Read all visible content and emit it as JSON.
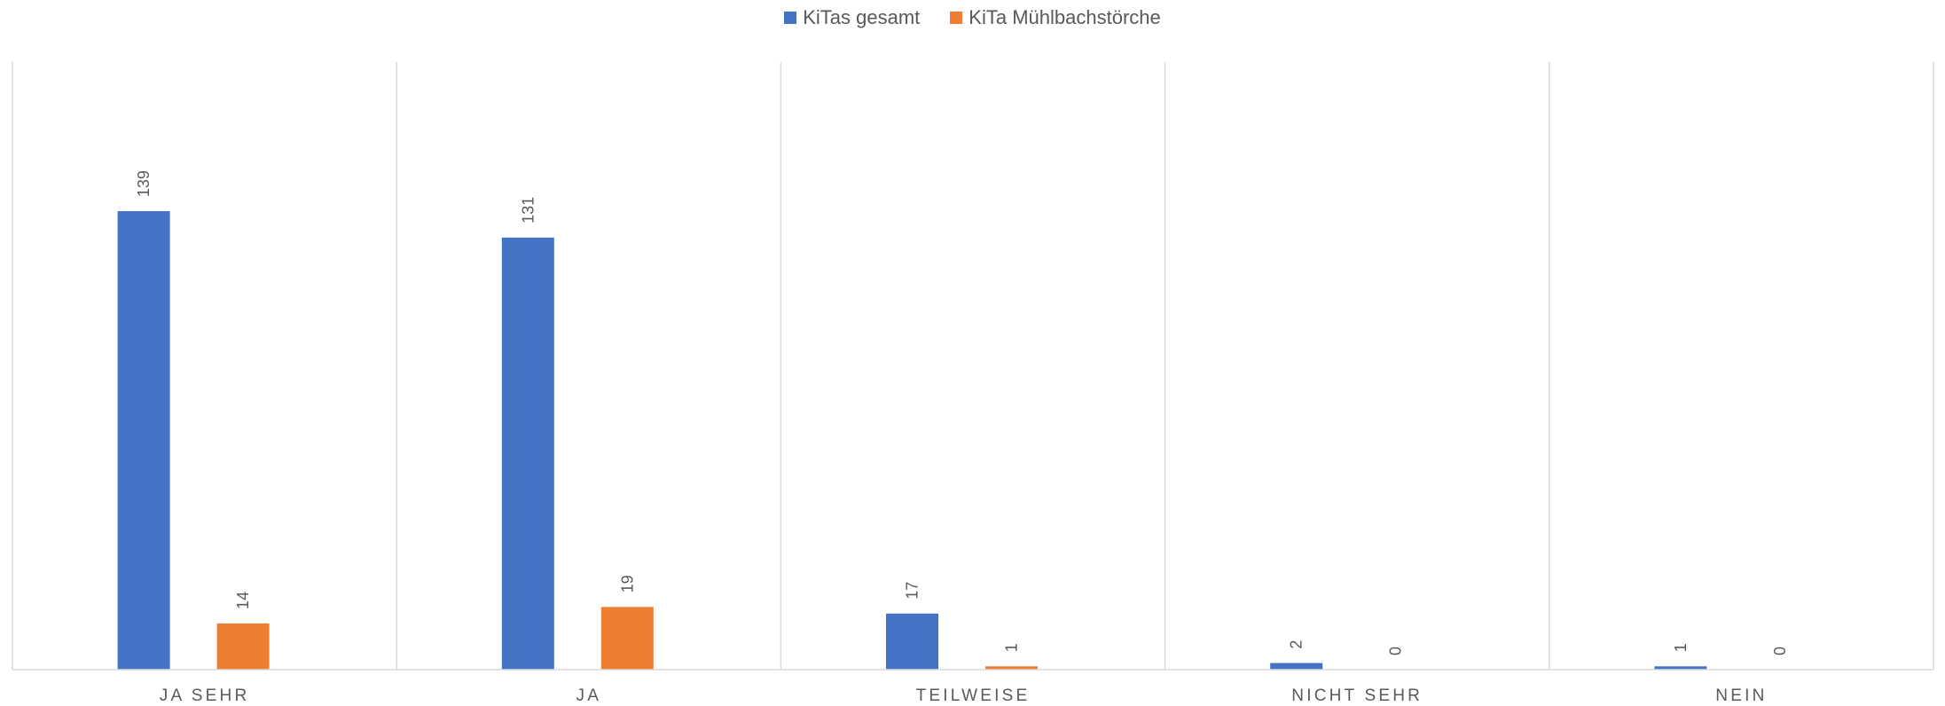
{
  "chart_data": {
    "type": "bar",
    "categories": [
      "JA SEHR",
      "JA",
      "TEILWEISE",
      "NICHT SEHR",
      "NEIN"
    ],
    "series": [
      {
        "name": "KiTas gesamt",
        "values": [
          139,
          131,
          17,
          2,
          1
        ],
        "color": "#4472C4"
      },
      {
        "name": "KiTa Mühlbachstörche",
        "values": [
          14,
          19,
          1,
          0,
          0
        ],
        "color": "#ED7D31"
      }
    ],
    "title": "",
    "xlabel": "",
    "ylabel": "",
    "ylim": [
      0,
      160
    ],
    "grid": false,
    "legend": "top-center",
    "data_labels": true
  }
}
